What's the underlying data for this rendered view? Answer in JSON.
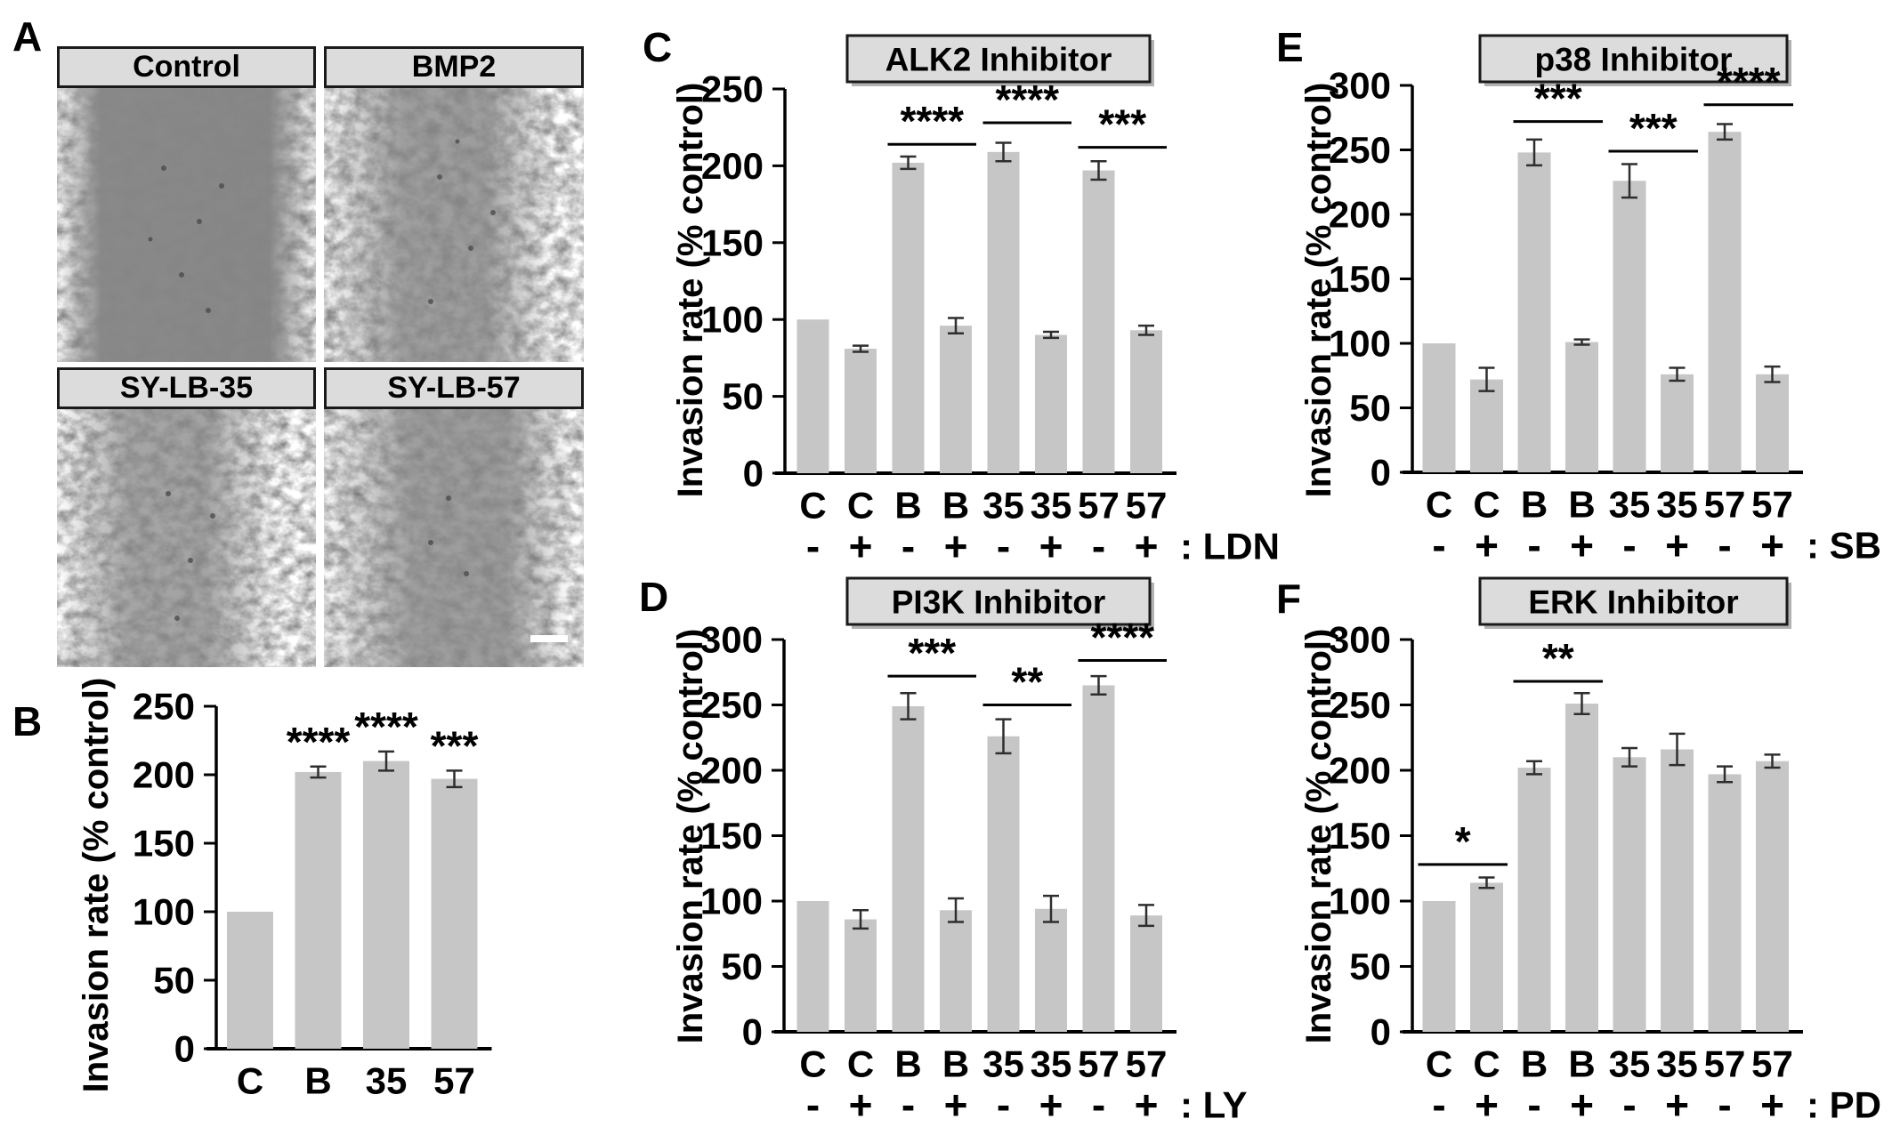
{
  "panels": {
    "a": {
      "letter": "A"
    },
    "b": {
      "letter": "B"
    },
    "c": {
      "letter": "C"
    },
    "d": {
      "letter": "D"
    },
    "e": {
      "letter": "E"
    },
    "f": {
      "letter": "F"
    }
  },
  "microscopy": {
    "items": [
      {
        "label": "Control",
        "has_scale_bar": false
      },
      {
        "label": "BMP2",
        "has_scale_bar": false
      },
      {
        "label": "SY-LB-35",
        "has_scale_bar": false
      },
      {
        "label": "SY-LB-57",
        "has_scale_bar": true
      }
    ]
  },
  "colors": {
    "bar_fill": "#c6c6c6",
    "axis": "#000000",
    "error_bar": "#2e2e2e",
    "title_box_fill": "#dcdcdc",
    "title_box_border": "#1a1a1a"
  },
  "chart_data": [
    {
      "panel": "B",
      "type": "bar",
      "title": "",
      "ylabel": "Invasion rate (% control)",
      "ylim": [
        0,
        250
      ],
      "ytick_step": 50,
      "grid": false,
      "categories": [
        "C",
        "B",
        "35",
        "57"
      ],
      "values": [
        100,
        202,
        210,
        197
      ],
      "errors": [
        0,
        4,
        7,
        6
      ],
      "bar_sig": [
        "",
        "****",
        "****",
        "***"
      ],
      "treatment_signs": null,
      "treatment_label": ""
    },
    {
      "panel": "C",
      "type": "bar",
      "title": "ALK2 Inhibitor",
      "ylabel": "Invasion rate (% control)",
      "ylim": [
        0,
        250
      ],
      "ytick_step": 50,
      "grid": false,
      "categories": [
        "C",
        "C",
        "B",
        "B",
        "35",
        "35",
        "57",
        "57"
      ],
      "treatment_signs": [
        "-",
        "+",
        "-",
        "+",
        "-",
        "+",
        "-",
        "+"
      ],
      "treatment_label": ": LDN",
      "values": [
        100,
        81,
        202,
        96,
        209,
        90,
        197,
        93
      ],
      "errors": [
        0,
        2,
        4,
        5,
        6,
        2,
        6,
        3
      ],
      "brackets": [
        {
          "from": 2,
          "to": 3,
          "label": "****",
          "y": 214
        },
        {
          "from": 4,
          "to": 5,
          "label": "****",
          "y": 228
        },
        {
          "from": 6,
          "to": 7,
          "label": "***",
          "y": 212
        }
      ]
    },
    {
      "panel": "D",
      "type": "bar",
      "title": "PI3K Inhibitor",
      "ylabel": "Invasion rate (% control)",
      "ylim": [
        0,
        300
      ],
      "ytick_step": 50,
      "grid": false,
      "categories": [
        "C",
        "C",
        "B",
        "B",
        "35",
        "35",
        "57",
        "57"
      ],
      "treatment_signs": [
        "-",
        "+",
        "-",
        "+",
        "-",
        "+",
        "-",
        "+"
      ],
      "treatment_label": ": LY",
      "values": [
        100,
        86,
        249,
        93,
        226,
        94,
        265,
        89
      ],
      "errors": [
        0,
        7,
        10,
        9,
        13,
        10,
        7,
        8
      ],
      "brackets": [
        {
          "from": 2,
          "to": 3,
          "label": "***",
          "y": 272
        },
        {
          "from": 4,
          "to": 5,
          "label": "**",
          "y": 250
        },
        {
          "from": 6,
          "to": 7,
          "label": "****",
          "y": 284
        }
      ]
    },
    {
      "panel": "E",
      "type": "bar",
      "title": "p38 Inhibitor",
      "ylabel": "Invasion rate (% control)",
      "ylim": [
        0,
        300
      ],
      "ytick_step": 50,
      "grid": false,
      "categories": [
        "C",
        "C",
        "B",
        "B",
        "35",
        "35",
        "57",
        "57"
      ],
      "treatment_signs": [
        "-",
        "+",
        "-",
        "+",
        "-",
        "+",
        "-",
        "+"
      ],
      "treatment_label": ": SB",
      "values": [
        100,
        72,
        248,
        101,
        226,
        76,
        264,
        76
      ],
      "errors": [
        0,
        9,
        10,
        2,
        13,
        5,
        6,
        6
      ],
      "brackets": [
        {
          "from": 2,
          "to": 3,
          "label": "***",
          "y": 272
        },
        {
          "from": 4,
          "to": 5,
          "label": "***",
          "y": 249
        },
        {
          "from": 6,
          "to": 7,
          "label": "****",
          "y": 285
        }
      ]
    },
    {
      "panel": "F",
      "type": "bar",
      "title": "ERK Inhibitor",
      "ylabel": "Invasion rate (% control)",
      "ylim": [
        0,
        300
      ],
      "ytick_step": 50,
      "grid": false,
      "categories": [
        "C",
        "C",
        "B",
        "B",
        "35",
        "35",
        "57",
        "57"
      ],
      "treatment_signs": [
        "-",
        "+",
        "-",
        "+",
        "-",
        "+",
        "-",
        "+"
      ],
      "treatment_label": ": PD",
      "values": [
        100,
        114,
        202,
        251,
        210,
        216,
        197,
        207
      ],
      "errors": [
        0,
        4,
        5,
        8,
        7,
        12,
        6,
        5
      ],
      "brackets": [
        {
          "from": 0,
          "to": 1,
          "label": "*",
          "y": 128
        },
        {
          "from": 2,
          "to": 3,
          "label": "**",
          "y": 268
        }
      ]
    }
  ]
}
